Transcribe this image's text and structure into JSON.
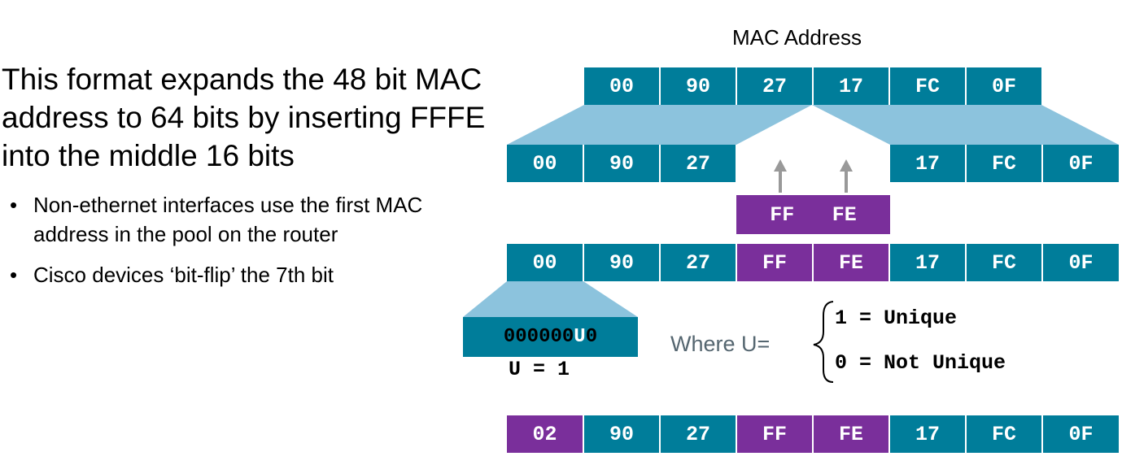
{
  "slide": {
    "heading": "This format expands the 48 bit MAC address to 64 bits by inserting FFFE into the middle 16 bits",
    "bullets": [
      "Non-ethernet interfaces use the first MAC address in the pool on the router",
      "Cisco devices ‘bit-flip’ the 7th bit"
    ],
    "bullet_glyph": "•"
  },
  "diagram": {
    "mac_label": "MAC Address",
    "mac_row": [
      "00",
      "90",
      "27",
      "17",
      "FC",
      "0F"
    ],
    "split_left": [
      "00",
      "90",
      "27"
    ],
    "split_right": [
      "17",
      "FC",
      "0F"
    ],
    "insert": [
      "FF",
      "FE"
    ],
    "combined_row": [
      "00",
      "90",
      "27",
      "FF",
      "FE",
      "17",
      "FC",
      "0F"
    ],
    "bit_box": {
      "prefix": "000000",
      "u": "U",
      "suffix": "0"
    },
    "u_assignment": "U = 1",
    "where_label": "Where U=",
    "cases": [
      "1 = Unique",
      "0 = Not Unique"
    ],
    "final_row": [
      "02",
      "90",
      "27",
      "FF",
      "FE",
      "17",
      "FC",
      "0F"
    ],
    "colors": {
      "teal": "#007d9a",
      "purple": "#7a2f9b",
      "light_blue": "#8cc3dd",
      "arrow_gray": "#999999"
    }
  }
}
